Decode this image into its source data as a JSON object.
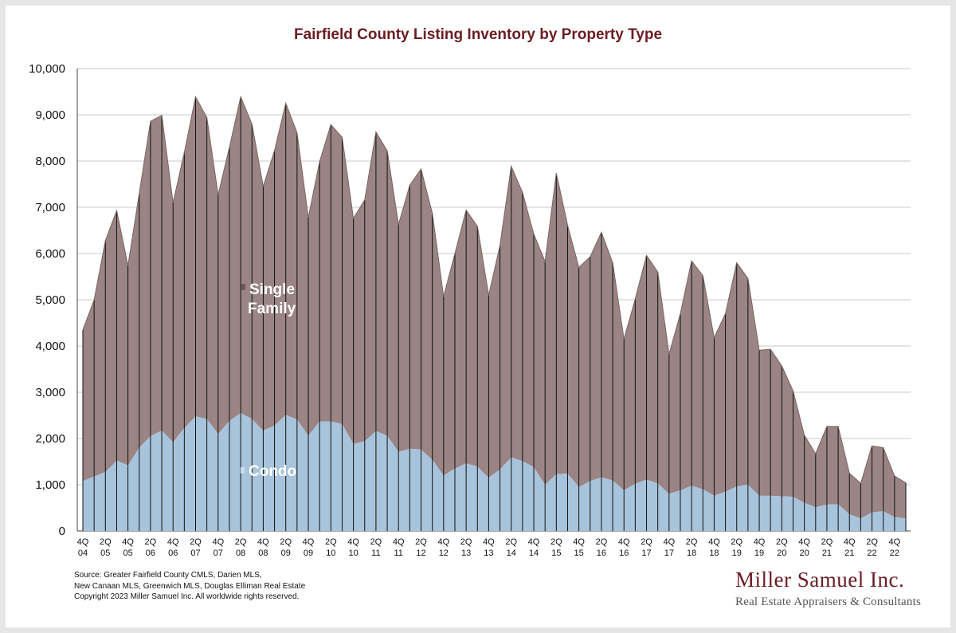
{
  "title": "Fairfield County Listing Inventory by Property Type",
  "footer": {
    "source_line1": "Source:  Greater Fairfield County CMLS, Darien MLS,",
    "source_line2": "New Canaan MLS, Greenwich MLS, Douglas Elliman Real Estate",
    "copyright": "Copyright 2023 Miller Samuel Inc.  All worldwide rights reserved."
  },
  "logo": {
    "name": "Miller Samuel Inc.",
    "tagline": "Real Estate Appraisers & Consultants"
  },
  "colors": {
    "single_family": "#9a8484",
    "condo": "#a8c4dc",
    "title": "#6b1c23",
    "grid": "#c8c8c8"
  },
  "chart_data": {
    "type": "area",
    "stacked": true,
    "title": "Fairfield County Listing Inventory by Property Type",
    "ylim": [
      0,
      10000
    ],
    "yticks": [
      "0",
      "1,000",
      "2,000",
      "3,000",
      "4,000",
      "5,000",
      "6,000",
      "7,000",
      "8,000",
      "9,000",
      "10,000"
    ],
    "x_tick_labels": [
      [
        "4Q",
        "04"
      ],
      [
        "2Q",
        "05"
      ],
      [
        "4Q",
        "05"
      ],
      [
        "2Q",
        "06"
      ],
      [
        "4Q",
        "06"
      ],
      [
        "2Q",
        "07"
      ],
      [
        "4Q",
        "07"
      ],
      [
        "2Q",
        "08"
      ],
      [
        "4Q",
        "08"
      ],
      [
        "2Q",
        "09"
      ],
      [
        "4Q",
        "09"
      ],
      [
        "2Q",
        "10"
      ],
      [
        "4Q",
        "10"
      ],
      [
        "2Q",
        "11"
      ],
      [
        "4Q",
        "11"
      ],
      [
        "2Q",
        "12"
      ],
      [
        "4Q",
        "12"
      ],
      [
        "2Q",
        "13"
      ],
      [
        "4Q",
        "13"
      ],
      [
        "2Q",
        "14"
      ],
      [
        "4Q",
        "14"
      ],
      [
        "2Q",
        "15"
      ],
      [
        "4Q",
        "15"
      ],
      [
        "2Q",
        "16"
      ],
      [
        "4Q",
        "16"
      ],
      [
        "2Q",
        "17"
      ],
      [
        "4Q",
        "17"
      ],
      [
        "2Q",
        "18"
      ],
      [
        "4Q",
        "18"
      ],
      [
        "2Q",
        "19"
      ],
      [
        "4Q",
        "19"
      ],
      [
        "2Q",
        "20"
      ],
      [
        "4Q",
        "20"
      ],
      [
        "2Q",
        "21"
      ],
      [
        "4Q",
        "21"
      ],
      [
        "2Q",
        "22"
      ],
      [
        "4Q",
        "22"
      ]
    ],
    "series": [
      {
        "name": "Condo",
        "values": [
          1080,
          1180,
          1270,
          1520,
          1420,
          1800,
          2050,
          2170,
          1920,
          2230,
          2480,
          2420,
          2100,
          2380,
          2550,
          2420,
          2170,
          2280,
          2510,
          2410,
          2060,
          2370,
          2370,
          2310,
          1880,
          1940,
          2160,
          2060,
          1710,
          1780,
          1760,
          1540,
          1200,
          1350,
          1460,
          1390,
          1150,
          1330,
          1590,
          1510,
          1380,
          1000,
          1230,
          1240,
          950,
          1080,
          1160,
          1090,
          880,
          1020,
          1110,
          1030,
          800,
          880,
          980,
          900,
          760,
          850,
          960,
          1000,
          760,
          760,
          750,
          740,
          610,
          510,
          570,
          580,
          360,
          270,
          400,
          430,
          300,
          270
        ]
      },
      {
        "name": "Single Family",
        "values": [
          3270,
          3820,
          5010,
          5410,
          4320,
          5500,
          6810,
          6820,
          5180,
          5960,
          6910,
          6520,
          5170,
          5920,
          6840,
          6380,
          5280,
          5950,
          6740,
          6200,
          4720,
          5620,
          6420,
          6200,
          4880,
          5220,
          6470,
          6160,
          4920,
          5700,
          6070,
          5330,
          3870,
          4650,
          5480,
          5200,
          3950,
          4850,
          6300,
          5810,
          5040,
          4830,
          6510,
          5370,
          4750,
          4850,
          5300,
          4710,
          3270,
          4000,
          4850,
          4570,
          3020,
          3820,
          4860,
          4620,
          3420,
          3850,
          4840,
          4460,
          3150,
          3170,
          2820,
          2290,
          1460,
          1160,
          1690,
          1680,
          890,
          760,
          1440,
          1370,
          890,
          770
        ]
      }
    ],
    "series_labels": [
      {
        "series": "Single Family",
        "lines": [
          "Single",
          "Family"
        ]
      },
      {
        "series": "Condo",
        "lines": [
          "Condo"
        ]
      }
    ]
  }
}
